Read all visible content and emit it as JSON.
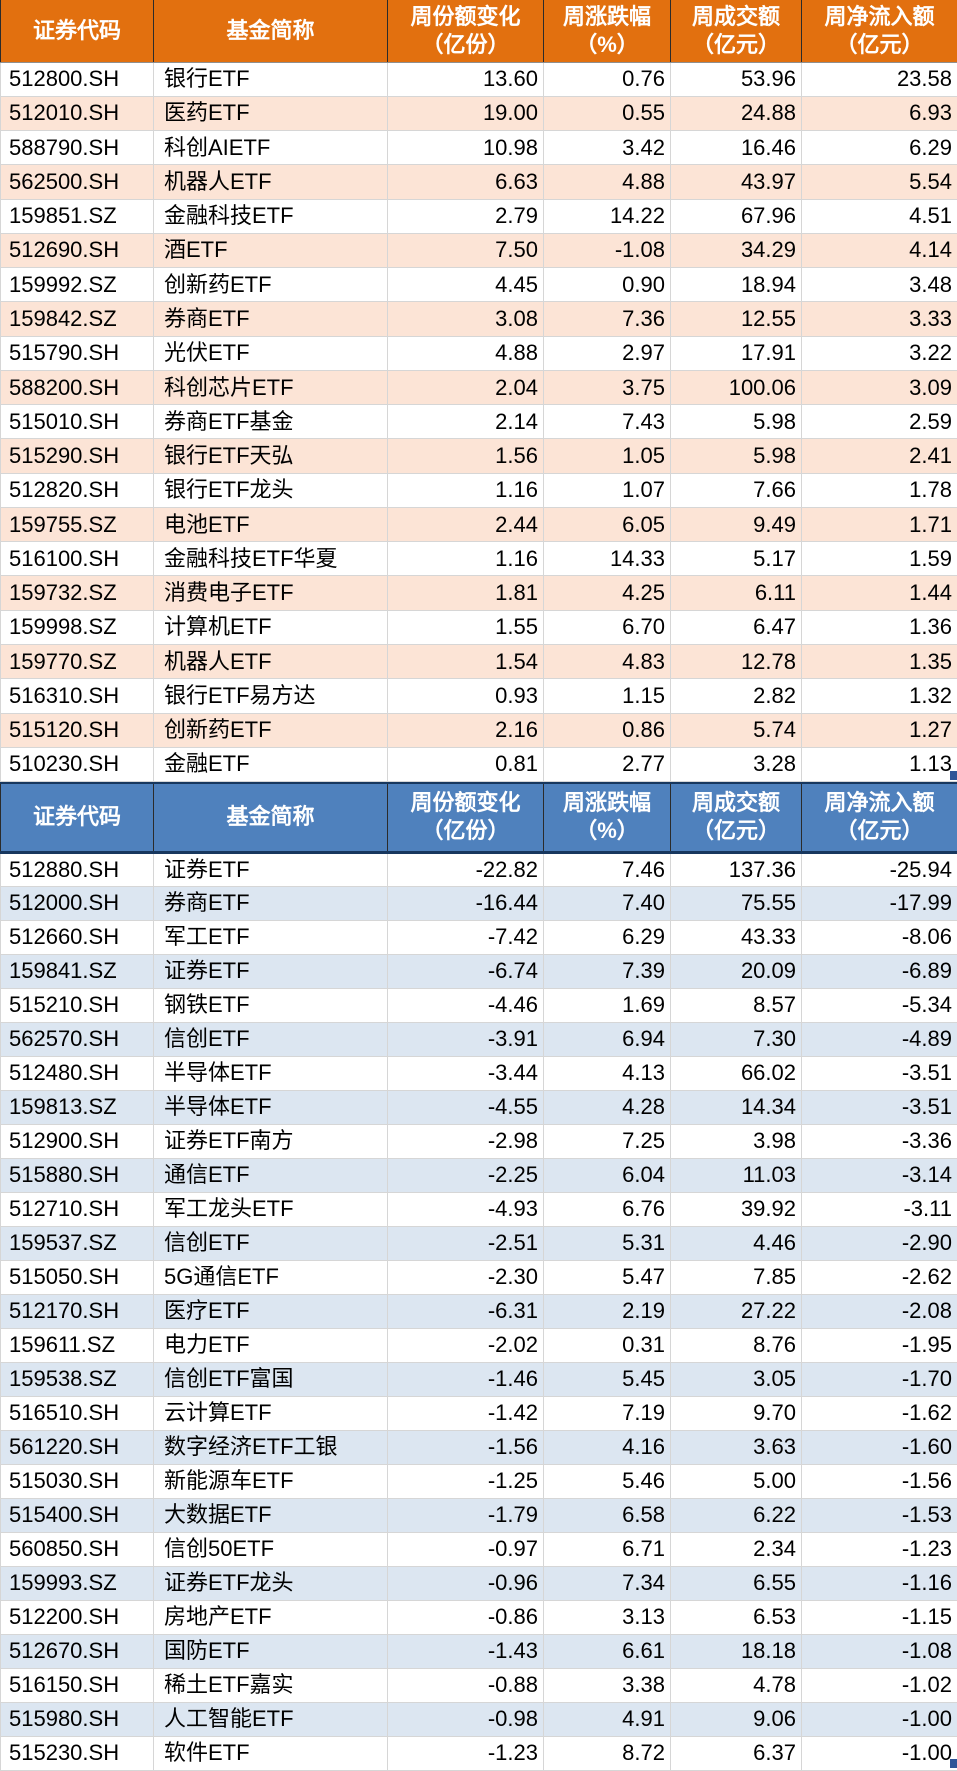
{
  "colors": {
    "orange_header": "#E2700F",
    "orange_stripe": "#FCE4D6",
    "blue_header": "#4F81BD",
    "blue_stripe": "#DCE6F1",
    "header_line": "#17375E",
    "header_text": "#FFFFFF",
    "text": "#000000",
    "handle": "#2F5597"
  },
  "chart_data": [
    {
      "type": "table",
      "legend_position": "none",
      "grid": true,
      "columns": [
        {
          "l1": "证券代码",
          "l2": ""
        },
        {
          "l1": "基金简称",
          "l2": ""
        },
        {
          "l1": "周份额变化",
          "l2": "（亿份）"
        },
        {
          "l1": "周涨跌幅",
          "l2": "（%）"
        },
        {
          "l1": "周成交额",
          "l2": "（亿元）"
        },
        {
          "l1": "周净流入额",
          "l2": "（亿元）"
        }
      ],
      "rows": [
        [
          "512800.SH",
          "银行ETF",
          "13.60",
          "0.76",
          "53.96",
          "23.58"
        ],
        [
          "512010.SH",
          "医药ETF",
          "19.00",
          "0.55",
          "24.88",
          "6.93"
        ],
        [
          "588790.SH",
          "科创AIETF",
          "10.98",
          "3.42",
          "16.46",
          "6.29"
        ],
        [
          "562500.SH",
          "机器人ETF",
          "6.63",
          "4.88",
          "43.97",
          "5.54"
        ],
        [
          "159851.SZ",
          "金融科技ETF",
          "2.79",
          "14.22",
          "67.96",
          "4.51"
        ],
        [
          "512690.SH",
          "酒ETF",
          "7.50",
          "-1.08",
          "34.29",
          "4.14"
        ],
        [
          "159992.SZ",
          "创新药ETF",
          "4.45",
          "0.90",
          "18.94",
          "3.48"
        ],
        [
          "159842.SZ",
          "券商ETF",
          "3.08",
          "7.36",
          "12.55",
          "3.33"
        ],
        [
          "515790.SH",
          "光伏ETF",
          "4.88",
          "2.97",
          "17.91",
          "3.22"
        ],
        [
          "588200.SH",
          "科创芯片ETF",
          "2.04",
          "3.75",
          "100.06",
          "3.09"
        ],
        [
          "515010.SH",
          "券商ETF基金",
          "2.14",
          "7.43",
          "5.98",
          "2.59"
        ],
        [
          "515290.SH",
          "银行ETF天弘",
          "1.56",
          "1.05",
          "5.98",
          "2.41"
        ],
        [
          "512820.SH",
          "银行ETF龙头",
          "1.16",
          "1.07",
          "7.66",
          "1.78"
        ],
        [
          "159755.SZ",
          "电池ETF",
          "2.44",
          "6.05",
          "9.49",
          "1.71"
        ],
        [
          "516100.SH",
          "金融科技ETF华夏",
          "1.16",
          "14.33",
          "5.17",
          "1.59"
        ],
        [
          "159732.SZ",
          "消费电子ETF",
          "1.81",
          "4.25",
          "6.11",
          "1.44"
        ],
        [
          "159998.SZ",
          "计算机ETF",
          "1.55",
          "6.70",
          "6.47",
          "1.36"
        ],
        [
          "159770.SZ",
          "机器人ETF",
          "1.54",
          "4.83",
          "12.78",
          "1.35"
        ],
        [
          "516310.SH",
          "银行ETF易方达",
          "0.93",
          "1.15",
          "2.82",
          "1.32"
        ],
        [
          "515120.SH",
          "创新药ETF",
          "2.16",
          "0.86",
          "5.74",
          "1.27"
        ],
        [
          "510230.SH",
          "金融ETF",
          "0.81",
          "2.77",
          "3.28",
          "1.13"
        ]
      ]
    },
    {
      "type": "table",
      "legend_position": "none",
      "grid": true,
      "columns": [
        {
          "l1": "证券代码",
          "l2": ""
        },
        {
          "l1": "基金简称",
          "l2": ""
        },
        {
          "l1": "周份额变化",
          "l2": "（亿份）"
        },
        {
          "l1": "周涨跌幅",
          "l2": "（%）"
        },
        {
          "l1": "周成交额",
          "l2": "（亿元）"
        },
        {
          "l1": "周净流入额",
          "l2": "（亿元）"
        }
      ],
      "rows": [
        [
          "512880.SH",
          "证券ETF",
          "-22.82",
          "7.46",
          "137.36",
          "-25.94"
        ],
        [
          "512000.SH",
          "券商ETF",
          "-16.44",
          "7.40",
          "75.55",
          "-17.99"
        ],
        [
          "512660.SH",
          "军工ETF",
          "-7.42",
          "6.29",
          "43.33",
          "-8.06"
        ],
        [
          "159841.SZ",
          "证券ETF",
          "-6.74",
          "7.39",
          "20.09",
          "-6.89"
        ],
        [
          "515210.SH",
          "钢铁ETF",
          "-4.46",
          "1.69",
          "8.57",
          "-5.34"
        ],
        [
          "562570.SH",
          "信创ETF",
          "-3.91",
          "6.94",
          "7.30",
          "-4.89"
        ],
        [
          "512480.SH",
          "半导体ETF",
          "-3.44",
          "4.13",
          "66.02",
          "-3.51"
        ],
        [
          "159813.SZ",
          "半导体ETF",
          "-4.55",
          "4.28",
          "14.34",
          "-3.51"
        ],
        [
          "512900.SH",
          "证券ETF南方",
          "-2.98",
          "7.25",
          "3.98",
          "-3.36"
        ],
        [
          "515880.SH",
          "通信ETF",
          "-2.25",
          "6.04",
          "11.03",
          "-3.14"
        ],
        [
          "512710.SH",
          "军工龙头ETF",
          "-4.93",
          "6.76",
          "39.92",
          "-3.11"
        ],
        [
          "159537.SZ",
          "信创ETF",
          "-2.51",
          "5.31",
          "4.46",
          "-2.90"
        ],
        [
          "515050.SH",
          "5G通信ETF",
          "-2.30",
          "5.47",
          "7.85",
          "-2.62"
        ],
        [
          "512170.SH",
          "医疗ETF",
          "-6.31",
          "2.19",
          "27.22",
          "-2.08"
        ],
        [
          "159611.SZ",
          "电力ETF",
          "-2.02",
          "0.31",
          "8.76",
          "-1.95"
        ],
        [
          "159538.SZ",
          "信创ETF富国",
          "-1.46",
          "5.45",
          "3.05",
          "-1.70"
        ],
        [
          "516510.SH",
          "云计算ETF",
          "-1.42",
          "7.19",
          "9.70",
          "-1.62"
        ],
        [
          "561220.SH",
          "数字经济ETF工银",
          "-1.56",
          "4.16",
          "3.63",
          "-1.60"
        ],
        [
          "515030.SH",
          "新能源车ETF",
          "-1.25",
          "5.46",
          "5.00",
          "-1.56"
        ],
        [
          "515400.SH",
          "大数据ETF",
          "-1.79",
          "6.58",
          "6.22",
          "-1.53"
        ],
        [
          "560850.SH",
          "信创50ETF",
          "-0.97",
          "6.71",
          "2.34",
          "-1.23"
        ],
        [
          "159993.SZ",
          "证券ETF龙头",
          "-0.96",
          "7.34",
          "6.55",
          "-1.16"
        ],
        [
          "512200.SH",
          "房地产ETF",
          "-0.86",
          "3.13",
          "6.53",
          "-1.15"
        ],
        [
          "512670.SH",
          "国防ETF",
          "-1.43",
          "6.61",
          "18.18",
          "-1.08"
        ],
        [
          "516150.SH",
          "稀土ETF嘉实",
          "-0.88",
          "3.38",
          "4.78",
          "-1.02"
        ],
        [
          "515980.SH",
          "人工智能ETF",
          "-0.98",
          "4.91",
          "9.06",
          "-1.00"
        ],
        [
          "515230.SH",
          "软件ETF",
          "-1.23",
          "8.72",
          "6.37",
          "-1.00"
        ]
      ]
    }
  ]
}
